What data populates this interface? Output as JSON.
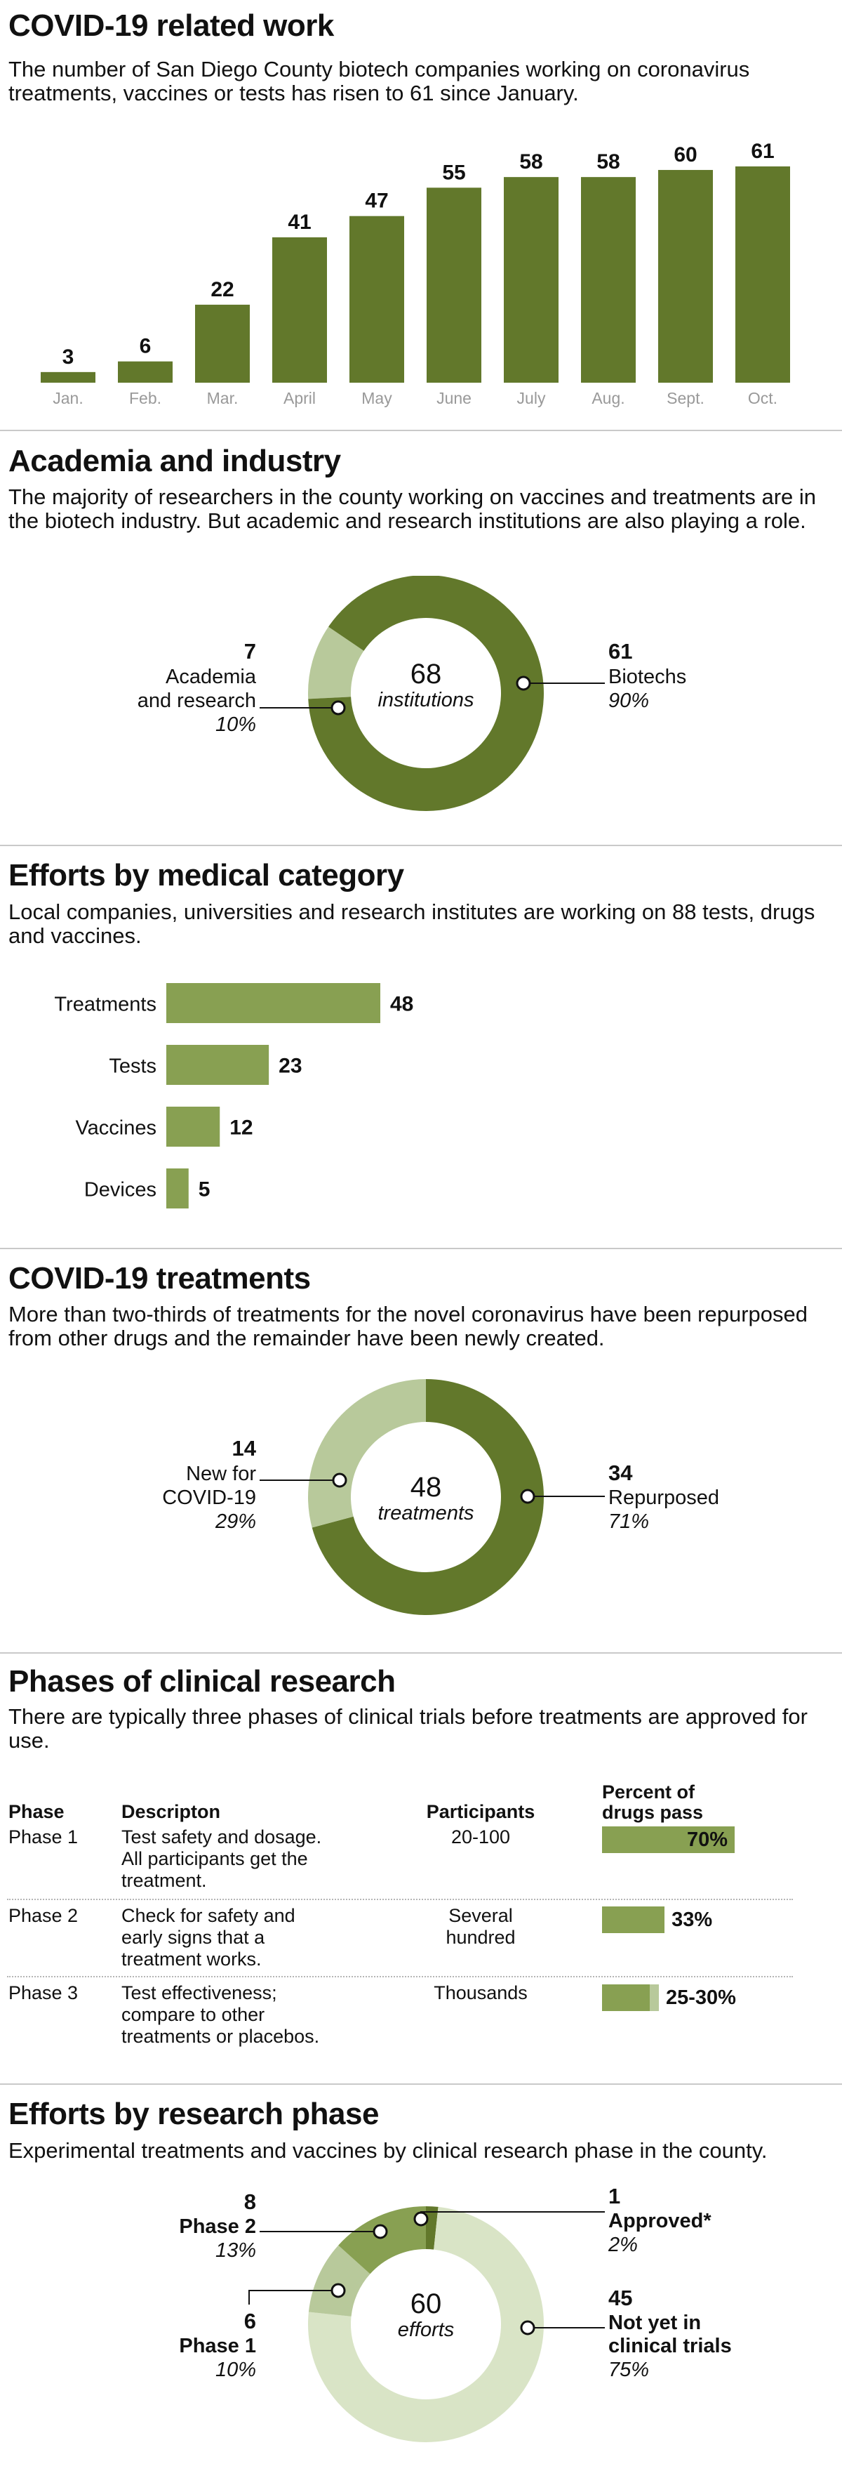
{
  "colors": {
    "dark": "#62782b",
    "mid": "#88a052",
    "light": "#b8c99b",
    "pale": "#d9e4c6"
  },
  "s1": {
    "title": "COVID-19 related work",
    "subtitle": "The number of San Diego County biotech companies working on coronavirus treatments, vaccines or tests has risen to 61 since January."
  },
  "s2": {
    "title": "Academia and industry",
    "subtitle": "The majority of researchers in the county working on vaccines and treatments are in the biotech industry. But academic and research institutions are also playing a role.",
    "center_value": "68",
    "center_label": "institutions",
    "left": {
      "value": "7",
      "line1": "Academia",
      "line2": "and research",
      "pct": "10%"
    },
    "right": {
      "value": "61",
      "line1": "Biotechs",
      "pct": "90%"
    }
  },
  "s3": {
    "title": "Efforts by medical category",
    "subtitle": "Local companies, universities and research institutes are working on 88 tests, drugs and vaccines."
  },
  "s4": {
    "title": "COVID-19 treatments",
    "subtitle": "More than two-thirds of treatments for the novel coronavirus have been repurposed from other drugs and the remainder have been newly created.",
    "center_value": "48",
    "center_label": "treatments",
    "left": {
      "value": "14",
      "line1": "New for",
      "line2": "COVID-19",
      "pct": "29%"
    },
    "right": {
      "value": "34",
      "line1": "Repurposed",
      "pct": "71%"
    }
  },
  "s5": {
    "title": "Phases of clinical research",
    "subtitle": "There are typically three phases of clinical trials before treatments are approved for use.",
    "headers": {
      "phase": "Phase",
      "desc": "Descripton",
      "participants": "Participants",
      "pct1": "Percent of",
      "pct2": "drugs pass"
    },
    "rows": [
      {
        "phase": "Phase 1",
        "desc": [
          "Test safety and dosage.",
          "All participants get the",
          "treatment."
        ],
        "participants": [
          "20-100"
        ],
        "pass_label": "70%",
        "pass_pct": 70,
        "pass_range_pct": 0
      },
      {
        "phase": "Phase 2",
        "desc": [
          "Check for safety and",
          "early signs that a",
          "treatment works."
        ],
        "participants": [
          "Several",
          "hundred"
        ],
        "pass_label": "33%",
        "pass_pct": 33,
        "pass_range_pct": 0
      },
      {
        "phase": "Phase 3",
        "desc": [
          "Test effectiveness;",
          "compare to other",
          "treatments or placebos."
        ],
        "participants": [
          "Thousands"
        ],
        "pass_label": "25-30%",
        "pass_pct": 25,
        "pass_range_pct": 30
      }
    ]
  },
  "s6": {
    "title": "Efforts by research phase",
    "subtitle": "Experimental treatments and vaccines by clinical research phase in the county.",
    "center_value": "60",
    "center_label": "efforts",
    "approved": {
      "value": "1",
      "label": "Approved*",
      "pct": "2%"
    },
    "not_yet": {
      "value": "45",
      "line1": "Not yet in",
      "line2": "clinical trials",
      "pct": "75%"
    },
    "phase2": {
      "value": "8",
      "label": "Phase 2",
      "pct": "13%"
    },
    "phase1": {
      "value": "6",
      "label": "Phase 1",
      "pct": "10%"
    }
  },
  "chart_data": [
    {
      "type": "bar",
      "title": "COVID-19 related work",
      "categories": [
        "Jan.",
        "Feb.",
        "Mar.",
        "April",
        "May",
        "June",
        "July",
        "Aug.",
        "Sept.",
        "Oct."
      ],
      "values": [
        3,
        6,
        22,
        41,
        47,
        55,
        58,
        58,
        60,
        61
      ],
      "ylim": [
        0,
        61
      ]
    },
    {
      "type": "pie",
      "title": "Academia and industry",
      "categories": [
        "Academia and research",
        "Biotechs"
      ],
      "values": [
        7,
        61
      ]
    },
    {
      "type": "bar",
      "orientation": "horizontal",
      "title": "Efforts by medical category",
      "categories": [
        "Treatments",
        "Tests",
        "Vaccines",
        "Devices"
      ],
      "values": [
        48,
        23,
        12,
        5
      ]
    },
    {
      "type": "pie",
      "title": "COVID-19 treatments",
      "categories": [
        "New for COVID-19",
        "Repurposed"
      ],
      "values": [
        14,
        34
      ]
    },
    {
      "type": "pie",
      "title": "Efforts by research phase",
      "categories": [
        "Approved*",
        "Not yet in clinical trials",
        "Phase 1",
        "Phase 2"
      ],
      "values": [
        1,
        45,
        6,
        8
      ]
    }
  ]
}
